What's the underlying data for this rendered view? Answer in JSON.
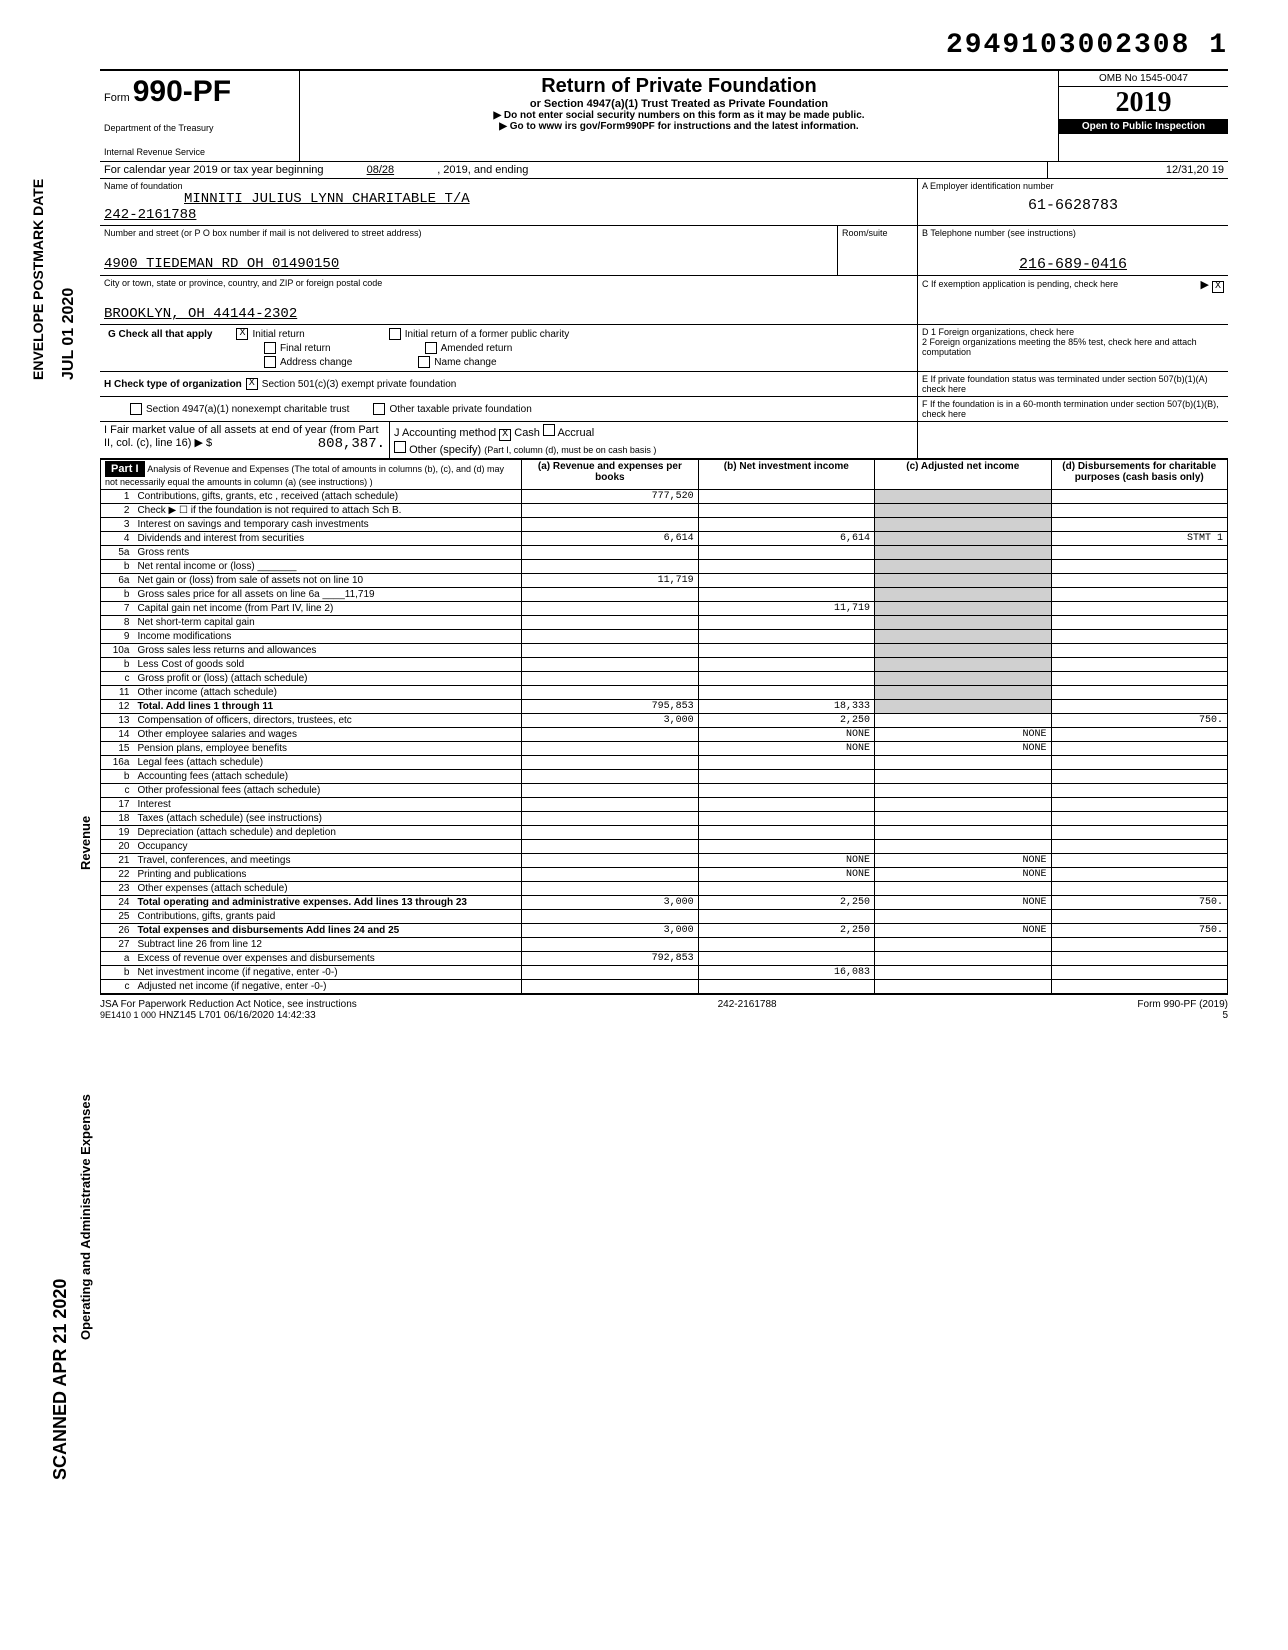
{
  "document_id": "2949103002308 1",
  "form": {
    "number": "990-PF",
    "prefix": "Form",
    "title": "Return of Private Foundation",
    "subtitle": "or Section 4947(a)(1) Trust Treated as Private Foundation",
    "warning": "▶ Do not enter social security numbers on this form as it may be made public.",
    "goto": "▶ Go to www irs gov/Form990PF for instructions and the latest information.",
    "dept1": "Department of the Treasury",
    "dept2": "Internal Revenue Service",
    "omb": "OMB No 1545-0047",
    "year": "2019",
    "year_prefix": "20",
    "inspection": "Open to Public Inspection"
  },
  "period": {
    "label": "For calendar year 2019 or tax year beginning",
    "begin": "08/28",
    "mid": ", 2019, and ending",
    "end": "12/31,20 19"
  },
  "foundation": {
    "name_label": "Name of foundation",
    "name": "MINNITI JULIUS LYNN CHARITABLE T/A",
    "name2": "242-2161788",
    "addr_label": "Number and street (or P O  box number if mail is not delivered to street address)",
    "room_label": "Room/suite",
    "address": "4900 TIEDEMAN RD OH 01490150",
    "city_label": "City or town, state or province, country, and ZIP or foreign postal code",
    "city": "BROOKLYN, OH 44144-2302"
  },
  "boxA": {
    "label": "A  Employer identification number",
    "value": "61-6628783"
  },
  "boxB": {
    "label": "B  Telephone number (see instructions)",
    "value": "216-689-0416"
  },
  "boxC": {
    "label": "C  If exemption application is pending, check here",
    "checked": "X"
  },
  "boxD": {
    "d1": "D  1  Foreign organizations, check here",
    "d2": "2  Foreign organizations meeting the 85% test, check here and attach computation"
  },
  "boxE": "E  If private foundation status was terminated under section 507(b)(1)(A) check here",
  "boxF": "F  If the foundation is in a 60-month termination under section 507(b)(1)(B), check here",
  "sectionG": {
    "label": "G  Check all that apply",
    "opts": [
      "Initial return",
      "Final return",
      "Address change",
      "Initial return of a former public charity",
      "Amended return",
      "Name change"
    ],
    "checked_initial": "X"
  },
  "sectionH": {
    "label": "H  Check type of organization",
    "opt1": "Section 501(c)(3) exempt private foundation",
    "opt1_checked": "X",
    "opt2": "Section 4947(a)(1) nonexempt charitable trust",
    "opt3": "Other taxable private foundation"
  },
  "sectionI": {
    "label": "I  Fair market value of all assets at end of year (from Part II, col. (c), line 16) ▶ $",
    "value": "808,387.",
    "note": "(Part I, column (d), must be on cash basis )"
  },
  "sectionJ": {
    "label": "J Accounting method",
    "cash": "Cash",
    "cash_checked": "X",
    "accrual": "Accrual",
    "other": "Other (specify)"
  },
  "part1": {
    "header": "Part I",
    "title": "Analysis of Revenue and Expenses (The total of amounts in columns (b), (c), and (d) may not necessarily equal the amounts in column (a) (see instructions) )",
    "cols": {
      "a": "(a) Revenue and expenses per books",
      "b": "(b) Net investment income",
      "c": "(c) Adjusted net income",
      "d": "(d) Disbursements for charitable purposes (cash basis only)"
    }
  },
  "revenue_label": "Revenue",
  "expenses_label": "Operating and Administrative Expenses",
  "rows": [
    {
      "n": "1",
      "desc": "Contributions, gifts, grants, etc , received (attach schedule)",
      "a": "777,520"
    },
    {
      "n": "2",
      "desc": "Check ▶ ☐ if the foundation is not required to attach Sch B."
    },
    {
      "n": "3",
      "desc": "Interest on savings and temporary cash investments"
    },
    {
      "n": "4",
      "desc": "Dividends and interest from securities",
      "a": "6,614",
      "b": "6,614",
      "d": "STMT 1"
    },
    {
      "n": "5a",
      "desc": "Gross rents"
    },
    {
      "n": "b",
      "desc": "Net rental income or (loss) _______"
    },
    {
      "n": "6a",
      "desc": "Net gain or (loss) from sale of assets not on line 10",
      "a": "11,719"
    },
    {
      "n": "b",
      "desc": "Gross sales price for all assets on line 6a ____11,719"
    },
    {
      "n": "7",
      "desc": "Capital gain net income (from Part IV, line 2)",
      "b": "11,719"
    },
    {
      "n": "8",
      "desc": "Net short-term capital gain"
    },
    {
      "n": "9",
      "desc": "Income modifications"
    },
    {
      "n": "10a",
      "desc": "Gross sales less returns and allowances"
    },
    {
      "n": "b",
      "desc": "Less Cost of goods sold"
    },
    {
      "n": "c",
      "desc": "Gross profit or (loss) (attach schedule)"
    },
    {
      "n": "11",
      "desc": "Other income (attach schedule)"
    },
    {
      "n": "12",
      "desc": "Total. Add lines 1 through 11",
      "a": "795,853",
      "b": "18,333"
    },
    {
      "n": "13",
      "desc": "Compensation of officers, directors, trustees, etc",
      "a": "3,000",
      "b": "2,250",
      "d": "750."
    },
    {
      "n": "14",
      "desc": "Other employee salaries and wages",
      "b": "NONE",
      "c": "NONE"
    },
    {
      "n": "15",
      "desc": "Pension plans, employee benefits",
      "b": "NONE",
      "c": "NONE"
    },
    {
      "n": "16a",
      "desc": "Legal fees (attach schedule)"
    },
    {
      "n": "b",
      "desc": "Accounting fees (attach schedule)"
    },
    {
      "n": "c",
      "desc": "Other professional fees (attach schedule)"
    },
    {
      "n": "17",
      "desc": "Interest"
    },
    {
      "n": "18",
      "desc": "Taxes (attach schedule) (see instructions)"
    },
    {
      "n": "19",
      "desc": "Depreciation (attach schedule) and depletion"
    },
    {
      "n": "20",
      "desc": "Occupancy"
    },
    {
      "n": "21",
      "desc": "Travel, conferences, and meetings",
      "b": "NONE",
      "c": "NONE"
    },
    {
      "n": "22",
      "desc": "Printing and publications",
      "b": "NONE",
      "c": "NONE"
    },
    {
      "n": "23",
      "desc": "Other expenses (attach schedule)"
    },
    {
      "n": "24",
      "desc": "Total operating and administrative expenses. Add lines 13 through 23",
      "a": "3,000",
      "b": "2,250",
      "c": "NONE",
      "d": "750."
    },
    {
      "n": "25",
      "desc": "Contributions, gifts, grants paid"
    },
    {
      "n": "26",
      "desc": "Total expenses and disbursements Add lines 24 and 25",
      "a": "3,000",
      "b": "2,250",
      "c": "NONE",
      "d": "750."
    },
    {
      "n": "27",
      "desc": "Subtract line 26 from line 12"
    },
    {
      "n": "a",
      "desc": "Excess of revenue over expenses and disbursements",
      "a": "792,853"
    },
    {
      "n": "b",
      "desc": "Net investment income (if negative, enter -0-)",
      "b": "16,083"
    },
    {
      "n": "c",
      "desc": "Adjusted net income (if negative, enter -0-)"
    }
  ],
  "footer": {
    "jsa": "JSA For Paperwork Reduction Act Notice, see instructions",
    "code": "9E1410 1 000",
    "stamp": "HNZ145 L701 06/16/2020 14:42:33",
    "mid": "242-2161788",
    "form": "Form 990-PF (2019)",
    "page": "5"
  },
  "side_labels": {
    "postmark": "ENVELOPE POSTMARK DATE",
    "date": "JUL 01 2020",
    "scanned": "SCANNED APR 21 2020"
  }
}
